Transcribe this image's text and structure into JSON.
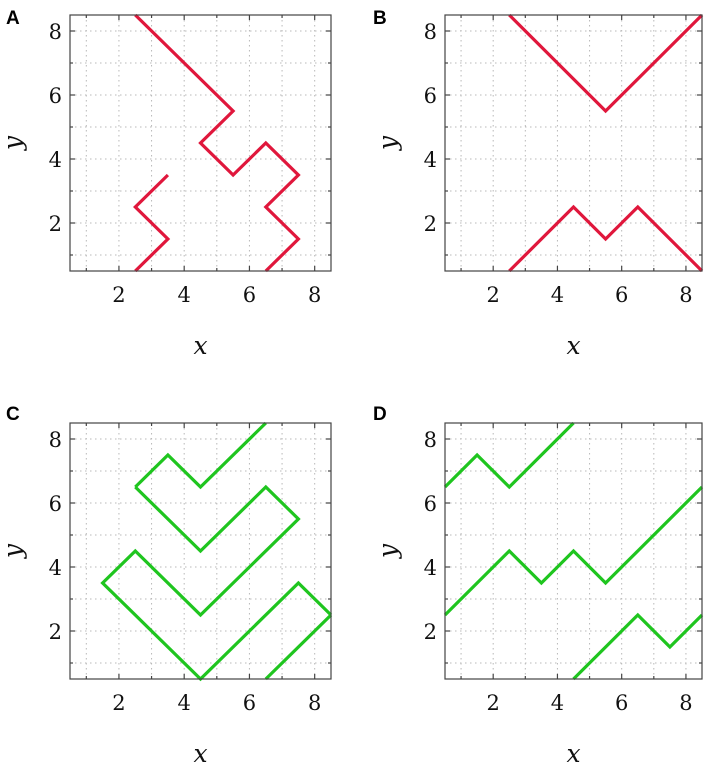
{
  "figure": {
    "panel_labels": [
      "A",
      "B",
      "C",
      "D"
    ]
  },
  "colors": {
    "panel_ab": "#e0173c",
    "panel_cd": "#1fc51f"
  },
  "chart_data": [
    {
      "type": "line",
      "panel": "A",
      "xlabel": "x",
      "ylabel": "y",
      "xlim": [
        0.5,
        8.5
      ],
      "ylim": [
        0.5,
        8.5
      ],
      "xticks": [
        2,
        4,
        6,
        8
      ],
      "yticks": [
        2,
        4,
        6,
        8
      ],
      "grid": true,
      "color": "#e0173c",
      "series": [
        {
          "points": [
            [
              2.5,
              8.5
            ],
            [
              5.5,
              5.5
            ],
            [
              4.5,
              4.5
            ],
            [
              5.5,
              3.5
            ],
            [
              6.5,
              4.5
            ],
            [
              7.5,
              3.5
            ],
            [
              6.5,
              2.5
            ],
            [
              7.5,
              1.5
            ],
            [
              6.5,
              0.5
            ]
          ]
        },
        {
          "points": [
            [
              2.5,
              0.5
            ],
            [
              3.5,
              1.5
            ],
            [
              2.5,
              2.5
            ],
            [
              3.5,
              3.5
            ]
          ]
        }
      ]
    },
    {
      "type": "line",
      "panel": "B",
      "xlabel": "x",
      "ylabel": "y",
      "xlim": [
        0.5,
        8.5
      ],
      "ylim": [
        0.5,
        8.5
      ],
      "xticks": [
        2,
        4,
        6,
        8
      ],
      "yticks": [
        2,
        4,
        6,
        8
      ],
      "grid": true,
      "color": "#e0173c",
      "series": [
        {
          "points": [
            [
              2.5,
              8.5
            ],
            [
              5.5,
              5.5
            ],
            [
              8.5,
              8.5
            ]
          ]
        },
        {
          "points": [
            [
              2.5,
              0.5
            ],
            [
              4.5,
              2.5
            ],
            [
              5.5,
              1.5
            ],
            [
              6.5,
              2.5
            ],
            [
              8.5,
              0.5
            ]
          ]
        }
      ]
    },
    {
      "type": "line",
      "panel": "C",
      "xlabel": "x",
      "ylabel": "y",
      "xlim": [
        0.5,
        8.5
      ],
      "ylim": [
        0.5,
        8.5
      ],
      "xticks": [
        2,
        4,
        6,
        8
      ],
      "yticks": [
        2,
        4,
        6,
        8
      ],
      "grid": true,
      "color": "#1fc51f",
      "series": [
        {
          "points": [
            [
              2.5,
              6.5
            ],
            [
              3.5,
              7.5
            ],
            [
              4.5,
              6.5
            ],
            [
              6.5,
              8.5
            ]
          ]
        },
        {
          "points": [
            [
              2.5,
              6.5
            ],
            [
              4.5,
              4.5
            ],
            [
              6.5,
              6.5
            ],
            [
              7.5,
              5.5
            ],
            [
              4.5,
              2.5
            ],
            [
              2.5,
              4.5
            ],
            [
              1.5,
              3.5
            ],
            [
              4.5,
              0.5
            ],
            [
              7.5,
              3.5
            ],
            [
              8.5,
              2.5
            ]
          ]
        },
        {
          "points": [
            [
              6.5,
              0.5
            ],
            [
              8.5,
              2.5
            ]
          ]
        }
      ]
    },
    {
      "type": "line",
      "panel": "D",
      "xlabel": "x",
      "ylabel": "y",
      "xlim": [
        0.5,
        8.5
      ],
      "ylim": [
        0.5,
        8.5
      ],
      "xticks": [
        2,
        4,
        6,
        8
      ],
      "yticks": [
        2,
        4,
        6,
        8
      ],
      "grid": true,
      "color": "#1fc51f",
      "series": [
        {
          "points": [
            [
              0.5,
              6.5
            ],
            [
              1.5,
              7.5
            ],
            [
              2.5,
              6.5
            ],
            [
              4.5,
              8.5
            ]
          ]
        },
        {
          "points": [
            [
              0.5,
              2.5
            ],
            [
              2.5,
              4.5
            ],
            [
              3.5,
              3.5
            ],
            [
              4.5,
              4.5
            ],
            [
              5.5,
              3.5
            ],
            [
              8.5,
              6.5
            ]
          ]
        },
        {
          "points": [
            [
              4.5,
              0.5
            ],
            [
              6.5,
              2.5
            ],
            [
              7.5,
              1.5
            ],
            [
              8.5,
              2.5
            ]
          ]
        }
      ]
    }
  ]
}
